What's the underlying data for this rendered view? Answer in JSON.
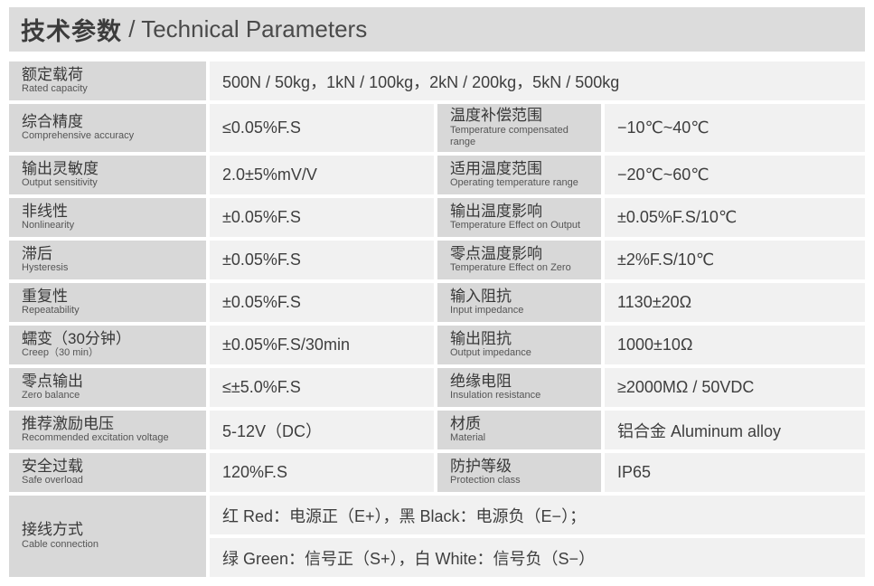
{
  "header": {
    "title_zh": "技术参数",
    "title_rest": " / Technical Parameters"
  },
  "colors": {
    "header_bg": "#dcdcdc",
    "label_cell_bg": "#d8d8d8",
    "value_cell_bg": "#f1f1f1",
    "text_dark": "#3c3c3c",
    "text_sub": "#555555"
  },
  "rows": [
    {
      "label_zh": "额定载荷",
      "label_en": "Rated capacity",
      "value": "500N / 50kg，1kN / 100kg，2kN / 200kg，5kN / 500kg"
    },
    {
      "left": {
        "label_zh": "综合精度",
        "label_en": "Comprehensive accuracy",
        "value": "≤0.05%F.S"
      },
      "right": {
        "label_zh": "温度补偿范围",
        "label_en": "Temperature compensated range",
        "value": "−10℃~40℃"
      }
    },
    {
      "left": {
        "label_zh": "输出灵敏度",
        "label_en": "Output sensitivity",
        "value": "2.0±5%mV/V"
      },
      "right": {
        "label_zh": "适用温度范围",
        "label_en": "Operating temperature range",
        "value": "−20℃~60℃"
      }
    },
    {
      "left": {
        "label_zh": "非线性",
        "label_en": "Nonlinearity",
        "value": "±0.05%F.S"
      },
      "right": {
        "label_zh": "输出温度影响",
        "label_en": "Temperature Effect on Output",
        "value": "±0.05%F.S/10℃"
      }
    },
    {
      "left": {
        "label_zh": "滞后",
        "label_en": "Hysteresis",
        "value": "±0.05%F.S"
      },
      "right": {
        "label_zh": "零点温度影响",
        "label_en": "Temperature Effect on Zero",
        "value": "±2%F.S/10℃"
      }
    },
    {
      "left": {
        "label_zh": "重复性",
        "label_en": "Repeatability",
        "value": "±0.05%F.S"
      },
      "right": {
        "label_zh": "输入阻抗",
        "label_en": "Input impedance",
        "value": "1130±20Ω"
      }
    },
    {
      "left": {
        "label_zh": "蠕变（30分钟）",
        "label_en": "Creep（30 min）",
        "value": "±0.05%F.S/30min"
      },
      "right": {
        "label_zh": "输出阻抗",
        "label_en": "Output impedance",
        "value": "1000±10Ω"
      }
    },
    {
      "left": {
        "label_zh": "零点输出",
        "label_en": "Zero balance",
        "value": "≤±5.0%F.S"
      },
      "right": {
        "label_zh": "绝缘电阻",
        "label_en": "Insulation resistance",
        "value": "≥2000MΩ / 50VDC"
      }
    },
    {
      "left": {
        "label_zh": "推荐激励电压",
        "label_en": "Recommended excitation voltage",
        "value": "5-12V（DC）"
      },
      "right": {
        "label_zh": "材质",
        "label_en": "Material",
        "value": "铝合金 Aluminum alloy"
      }
    },
    {
      "left": {
        "label_zh": "安全过载",
        "label_en": "Safe overload",
        "value": "120%F.S"
      },
      "right": {
        "label_zh": "防护等级",
        "label_en": "Protection class",
        "value": "IP65"
      }
    },
    {
      "label_zh": "接线方式",
      "label_en": "Cable connection",
      "lines": [
        "红 Red：电源正（E+），黑 Black：电源负（E−）；",
        "绿 Green：信号正（S+），白 White：信号负（S−）"
      ]
    }
  ]
}
